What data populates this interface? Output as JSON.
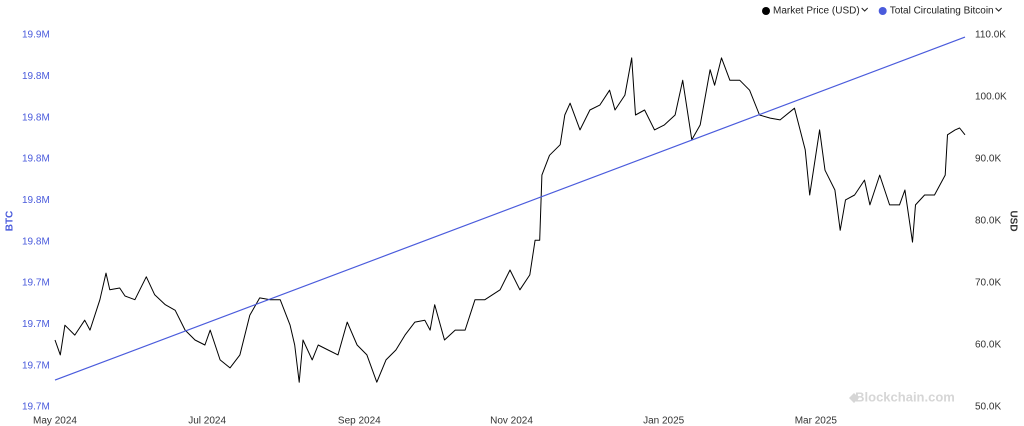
{
  "chart_data": {
    "type": "line",
    "ylabel": "BTC",
    "y2label": "USD",
    "watermark": "Blockchain.com",
    "legend_position": "top-right",
    "xlim": [
      0,
      12
    ],
    "xticks": [
      {
        "value": 0,
        "label": "May 2024"
      },
      {
        "value": 2,
        "label": "Jul 2024"
      },
      {
        "value": 4,
        "label": "Sep 2024"
      },
      {
        "value": 6,
        "label": "Nov 2024"
      },
      {
        "value": 8,
        "label": "Jan 2025"
      },
      {
        "value": 10,
        "label": "Mar 2025"
      }
    ],
    "ylim": [
      19680000,
      19860000
    ],
    "yticks": [
      {
        "value": 19680000,
        "label": "19.7M"
      },
      {
        "value": 19700000,
        "label": "19.7M"
      },
      {
        "value": 19720000,
        "label": "19.7M"
      },
      {
        "value": 19740000,
        "label": "19.7M"
      },
      {
        "value": 19760000,
        "label": "19.8M"
      },
      {
        "value": 19780000,
        "label": "19.8M"
      },
      {
        "value": 19800000,
        "label": "19.8M"
      },
      {
        "value": 19820000,
        "label": "19.8M"
      },
      {
        "value": 19840000,
        "label": "19.8M"
      },
      {
        "value": 19860000,
        "label": "19.9M"
      }
    ],
    "y2lim": [
      50000,
      110000
    ],
    "y2ticks": [
      {
        "value": 50000,
        "label": "50.0K"
      },
      {
        "value": 60000,
        "label": "60.0K"
      },
      {
        "value": 70000,
        "label": "70.0K"
      },
      {
        "value": 80000,
        "label": "80.0K"
      },
      {
        "value": 90000,
        "label": "90.0K"
      },
      {
        "value": 100000,
        "label": "100.0K"
      },
      {
        "value": 110000,
        "label": "110.0K"
      }
    ],
    "series": [
      {
        "name": "Market Price (USD)",
        "color": "#000000",
        "axis": "y2",
        "x": [
          0,
          0.07,
          0.13,
          0.26,
          0.39,
          0.46,
          0.59,
          0.67,
          0.72,
          0.85,
          0.92,
          1.05,
          1.2,
          1.31,
          1.45,
          1.58,
          1.71,
          1.84,
          1.97,
          2.04,
          2.17,
          2.3,
          2.43,
          2.56,
          2.69,
          2.83,
          2.96,
          3.09,
          3.15,
          3.21,
          3.26,
          3.38,
          3.46,
          3.59,
          3.72,
          3.84,
          3.97,
          4.1,
          4.23,
          4.35,
          4.48,
          4.6,
          4.73,
          4.86,
          4.93,
          4.99,
          5.12,
          5.26,
          5.39,
          5.52,
          5.65,
          5.85,
          5.98,
          6.11,
          6.24,
          6.31,
          6.37,
          6.4,
          6.5,
          6.64,
          6.7,
          6.77,
          6.9,
          7.03,
          7.16,
          7.29,
          7.36,
          7.49,
          7.58,
          7.63,
          7.75,
          7.88,
          8.01,
          8.15,
          8.25,
          8.37,
          8.48,
          8.61,
          8.67,
          8.76,
          8.87,
          9.0,
          9.13,
          9.26,
          9.4,
          9.53,
          9.72,
          9.86,
          9.92,
          10.05,
          10.12,
          10.25,
          10.32,
          10.39,
          10.51,
          10.64,
          10.71,
          10.84,
          10.97,
          11.1,
          11.17,
          11.27,
          11.31,
          11.43,
          11.56,
          11.7,
          11.73,
          11.83,
          11.89,
          11.96
        ],
        "values": [
          60800,
          58400,
          63200,
          61600,
          64000,
          62400,
          67300,
          71600,
          68900,
          69200,
          67900,
          67300,
          71000,
          68100,
          66500,
          65600,
          62400,
          60800,
          60000,
          62400,
          57600,
          56300,
          58400,
          64800,
          67600,
          67300,
          67300,
          63200,
          60000,
          54000,
          60800,
          57600,
          60000,
          59200,
          58400,
          63700,
          60000,
          58400,
          54000,
          57600,
          59200,
          61600,
          63700,
          64000,
          62400,
          66500,
          60800,
          62400,
          62400,
          67300,
          67300,
          68900,
          72100,
          68900,
          71300,
          76900,
          76900,
          87400,
          90600,
          92300,
          97100,
          99000,
          94700,
          97900,
          98700,
          101100,
          97900,
          100300,
          106300,
          97100,
          97900,
          94700,
          95500,
          97100,
          102700,
          93100,
          95500,
          104400,
          101900,
          106300,
          102700,
          102700,
          101100,
          97100,
          96600,
          96300,
          98200,
          91500,
          84200,
          94700,
          88200,
          85000,
          78500,
          83400,
          84200,
          86600,
          82600,
          87400,
          82600,
          82600,
          85000,
          76600,
          82600,
          84200,
          84200,
          87400,
          93900,
          94700,
          95000,
          93900
        ]
      },
      {
        "name": "Total Circulating Bitcoin",
        "color": "#4a5bdc",
        "x": [
          0,
          11.96
        ],
        "values": [
          19693000,
          19859000
        ]
      }
    ]
  }
}
